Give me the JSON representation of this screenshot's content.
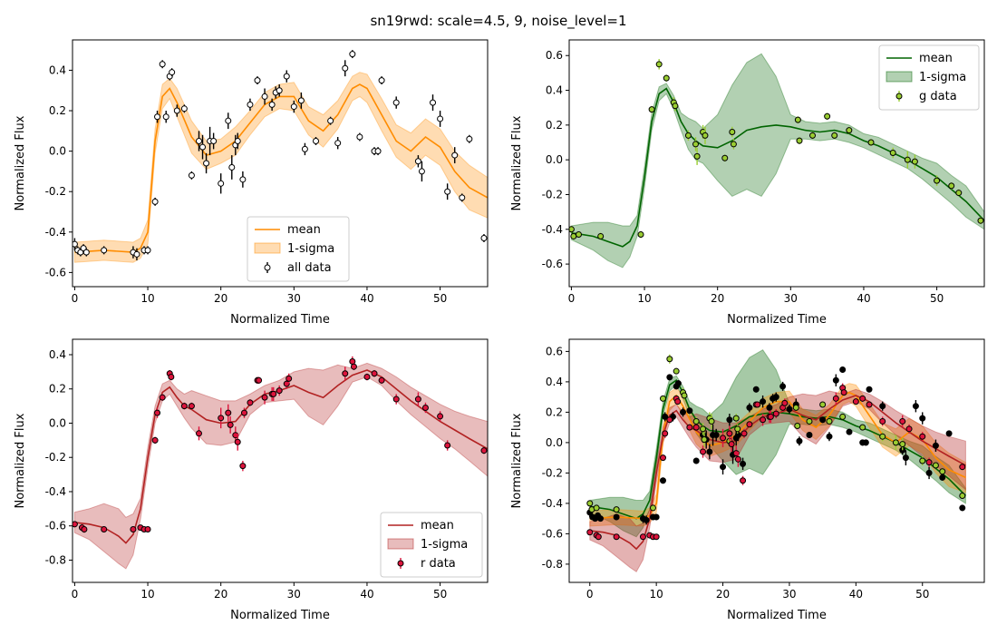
{
  "figure": {
    "title": "sn19rwd: scale=4.5, 9, noise_level=1",
    "colors": {
      "all": "#ff8c00",
      "g": "#006400",
      "r": "#b22222",
      "g_marker": "#9acd32",
      "r_marker": "#dc143c",
      "data_black": "#000000"
    }
  },
  "chart_data": [
    {
      "type": "scatter",
      "panel": "top-left",
      "xlabel": "Normalized Time",
      "ylabel": "Normalized Flux",
      "xlim": [
        -0.3,
        56.5
      ],
      "ylim": [
        -0.67,
        0.55
      ],
      "xticks": [
        0,
        10,
        20,
        30,
        40,
        50
      ],
      "yticks": [
        -0.6,
        -0.4,
        -0.2,
        0.0,
        0.2,
        0.4
      ],
      "legend_position": "lower-center",
      "series": [
        {
          "name": "mean",
          "kind": "line",
          "color": "#ff8c00",
          "x": [
            0,
            4,
            8,
            9,
            10,
            11,
            12,
            13,
            14,
            16,
            18,
            20,
            22,
            24,
            26,
            28,
            30,
            32,
            34,
            36,
            38,
            39,
            40,
            42,
            44,
            46,
            48,
            50,
            52,
            54,
            56.5
          ],
          "y": [
            -0.5,
            -0.49,
            -0.5,
            -0.48,
            -0.4,
            0.05,
            0.27,
            0.31,
            0.24,
            0.07,
            -0.02,
            0.0,
            0.05,
            0.14,
            0.23,
            0.27,
            0.27,
            0.15,
            0.1,
            0.18,
            0.31,
            0.33,
            0.31,
            0.18,
            0.05,
            0.0,
            0.07,
            0.02,
            -0.1,
            -0.18,
            -0.23
          ]
        },
        {
          "name": "1-sigma",
          "kind": "band",
          "color": "#ff8c00",
          "x": [
            0,
            4,
            8,
            9,
            10,
            11,
            12,
            13,
            14,
            16,
            18,
            20,
            22,
            24,
            26,
            28,
            30,
            32,
            34,
            36,
            38,
            39,
            40,
            42,
            44,
            46,
            48,
            50,
            52,
            54,
            56.5
          ],
          "lower": [
            -0.55,
            -0.54,
            -0.55,
            -0.53,
            -0.46,
            -0.01,
            0.21,
            0.26,
            0.17,
            -0.01,
            -0.09,
            -0.06,
            -0.02,
            0.08,
            0.17,
            0.21,
            0.2,
            0.08,
            0.02,
            0.11,
            0.25,
            0.27,
            0.24,
            0.1,
            -0.03,
            -0.09,
            -0.02,
            -0.07,
            -0.2,
            -0.29,
            -0.33
          ],
          "upper": [
            -0.45,
            -0.44,
            -0.45,
            -0.43,
            -0.34,
            0.11,
            0.33,
            0.36,
            0.31,
            0.15,
            0.05,
            0.06,
            0.12,
            0.2,
            0.29,
            0.33,
            0.34,
            0.22,
            0.18,
            0.25,
            0.37,
            0.39,
            0.38,
            0.26,
            0.13,
            0.09,
            0.16,
            0.11,
            0.0,
            -0.07,
            -0.13
          ]
        },
        {
          "name": "all data",
          "kind": "errorbar",
          "marker_face": "#ffffff",
          "marker_edge": "#000000",
          "x": [
            0,
            0.4,
            0.8,
            1.2,
            1.6,
            4,
            8,
            8.5,
            9.5,
            10,
            11,
            11.3,
            12,
            12.5,
            13,
            13.3,
            14,
            15,
            16,
            17,
            17.5,
            18,
            18.5,
            19,
            20,
            21,
            21.5,
            22,
            22.3,
            23,
            24,
            25,
            26,
            27,
            27.5,
            28,
            29,
            30,
            31,
            31.5,
            33,
            35,
            36,
            37,
            38,
            39,
            41,
            41.5,
            42,
            44,
            47,
            47.5,
            49,
            50,
            51,
            52,
            53,
            54,
            56
          ],
          "y": [
            -0.46,
            -0.49,
            -0.5,
            -0.48,
            -0.5,
            -0.49,
            -0.5,
            -0.51,
            -0.49,
            -0.49,
            -0.25,
            0.17,
            0.43,
            0.17,
            0.37,
            0.39,
            0.2,
            0.21,
            -0.12,
            0.05,
            0.02,
            -0.06,
            0.05,
            0.05,
            -0.16,
            0.15,
            -0.08,
            0.03,
            0.05,
            -0.14,
            0.23,
            0.35,
            0.27,
            0.23,
            0.29,
            0.3,
            0.37,
            0.22,
            0.25,
            0.01,
            0.05,
            0.15,
            0.04,
            0.41,
            0.48,
            0.07,
            0.0,
            0.0,
            0.35,
            0.24,
            -0.05,
            -0.1,
            0.24,
            0.16,
            -0.2,
            -0.02,
            -0.23,
            0.06,
            -0.43
          ],
          "yerr": [
            0.03,
            0.02,
            0.02,
            0.02,
            0.02,
            0.02,
            0.03,
            0.03,
            0.02,
            0.02,
            0.02,
            0.03,
            0.02,
            0.03,
            0.02,
            0.02,
            0.03,
            0.02,
            0.02,
            0.05,
            0.06,
            0.05,
            0.07,
            0.04,
            0.05,
            0.04,
            0.06,
            0.05,
            0.04,
            0.04,
            0.03,
            0.02,
            0.04,
            0.03,
            0.03,
            0.03,
            0.03,
            0.03,
            0.04,
            0.03,
            0.02,
            0.02,
            0.03,
            0.04,
            0.02,
            0.02,
            0.02,
            0.02,
            0.02,
            0.03,
            0.03,
            0.05,
            0.04,
            0.04,
            0.04,
            0.04,
            0.02,
            0.02,
            0.02
          ]
        }
      ]
    },
    {
      "type": "scatter",
      "panel": "top-right",
      "xlabel": "Normalized Time",
      "ylabel": "Normalized Flux",
      "xlim": [
        -0.3,
        56.5
      ],
      "ylim": [
        -0.73,
        0.69
      ],
      "xticks": [
        0,
        10,
        20,
        30,
        40,
        50
      ],
      "yticks": [
        -0.6,
        -0.4,
        -0.2,
        0.0,
        0.2,
        0.4,
        0.6
      ],
      "legend_position": "upper-right",
      "series": [
        {
          "name": "mean",
          "kind": "line",
          "color": "#006400",
          "x": [
            0,
            3,
            5,
            7,
            8,
            9,
            10,
            11,
            12,
            13,
            14,
            15,
            16,
            17,
            18,
            20,
            22,
            24,
            26,
            28,
            30,
            32,
            34,
            36,
            38,
            40,
            42,
            44,
            46,
            48,
            50,
            52,
            54,
            56.5
          ],
          "y": [
            -0.42,
            -0.44,
            -0.47,
            -0.5,
            -0.47,
            -0.38,
            -0.1,
            0.22,
            0.38,
            0.41,
            0.33,
            0.22,
            0.15,
            0.11,
            0.08,
            0.07,
            0.11,
            0.17,
            0.19,
            0.2,
            0.19,
            0.17,
            0.16,
            0.17,
            0.15,
            0.11,
            0.08,
            0.04,
            0.0,
            -0.05,
            -0.1,
            -0.17,
            -0.24,
            -0.35
          ]
        },
        {
          "name": "1-sigma",
          "kind": "band",
          "color": "#006400",
          "x": [
            0,
            3,
            5,
            7,
            8,
            9,
            10,
            11,
            12,
            13,
            14,
            15,
            16,
            17,
            18,
            20,
            22,
            24,
            26,
            28,
            30,
            32,
            34,
            36,
            38,
            40,
            42,
            44,
            46,
            48,
            50,
            52,
            54,
            56.5
          ],
          "lower": [
            -0.46,
            -0.52,
            -0.58,
            -0.62,
            -0.56,
            -0.44,
            -0.16,
            0.17,
            0.34,
            0.38,
            0.29,
            0.17,
            0.06,
            0.0,
            -0.02,
            -0.12,
            -0.21,
            -0.17,
            -0.21,
            -0.08,
            0.12,
            0.12,
            0.11,
            0.12,
            0.1,
            0.07,
            0.03,
            -0.01,
            -0.05,
            -0.11,
            -0.18,
            -0.25,
            -0.33,
            -0.4
          ],
          "upper": [
            -0.38,
            -0.36,
            -0.36,
            -0.38,
            -0.38,
            -0.32,
            -0.04,
            0.27,
            0.42,
            0.44,
            0.37,
            0.27,
            0.24,
            0.22,
            0.18,
            0.26,
            0.43,
            0.56,
            0.61,
            0.48,
            0.26,
            0.22,
            0.21,
            0.22,
            0.2,
            0.15,
            0.13,
            0.09,
            0.05,
            0.01,
            -0.02,
            -0.09,
            -0.15,
            -0.3
          ]
        },
        {
          "name": "g data",
          "kind": "errorbar",
          "marker_face": "#9acd32",
          "marker_edge": "#000000",
          "x": [
            0,
            0.3,
            1,
            4,
            9.5,
            11,
            12,
            13,
            14,
            14.2,
            16,
            17,
            17.2,
            18,
            18.3,
            21,
            22,
            22.2,
            31,
            31.2,
            33,
            35,
            36,
            38,
            41,
            44,
            46,
            47,
            50,
            52,
            53,
            56
          ],
          "y": [
            -0.4,
            -0.44,
            -0.43,
            -0.44,
            -0.43,
            0.29,
            0.55,
            0.47,
            0.33,
            0.31,
            0.14,
            0.09,
            0.02,
            0.16,
            0.14,
            0.01,
            0.16,
            0.09,
            0.23,
            0.11,
            0.14,
            0.25,
            0.14,
            0.17,
            0.1,
            0.04,
            0.0,
            -0.01,
            -0.12,
            -0.15,
            -0.19,
            -0.35
          ],
          "yerr": [
            0.02,
            0.02,
            0.01,
            0.02,
            0.02,
            0.02,
            0.03,
            0.02,
            0.03,
            0.03,
            0.03,
            0.04,
            0.05,
            0.04,
            0.05,
            0.02,
            0.03,
            0.03,
            0.02,
            0.02,
            0.02,
            0.02,
            0.02,
            0.02,
            0.02,
            0.03,
            0.05,
            0.04,
            0.03,
            0.02,
            0.02,
            0.02
          ]
        }
      ]
    },
    {
      "type": "scatter",
      "panel": "bottom-left",
      "xlabel": "Normalized Time",
      "ylabel": "Normalized Flux",
      "xlim": [
        -0.3,
        56.5
      ],
      "ylim": [
        -0.93,
        0.49
      ],
      "xticks": [
        0,
        10,
        20,
        30,
        40,
        50
      ],
      "yticks": [
        -0.8,
        -0.6,
        -0.4,
        -0.2,
        0.0,
        0.2,
        0.4
      ],
      "legend_position": "lower-right",
      "series": [
        {
          "name": "mean",
          "kind": "line",
          "color": "#b22222",
          "x": [
            0,
            2,
            4,
            6,
            7,
            8,
            9,
            10,
            11,
            12,
            13,
            14,
            15,
            16,
            18,
            20,
            22,
            24,
            26,
            28,
            30,
            32,
            34,
            36,
            38,
            40,
            42,
            44,
            46,
            48,
            50,
            52,
            54,
            56.5
          ],
          "y": [
            -0.58,
            -0.59,
            -0.61,
            -0.66,
            -0.7,
            -0.65,
            -0.5,
            -0.2,
            0.05,
            0.18,
            0.21,
            0.15,
            0.1,
            0.08,
            0.02,
            0.0,
            0.01,
            0.11,
            0.17,
            0.19,
            0.22,
            0.18,
            0.15,
            0.22,
            0.28,
            0.31,
            0.27,
            0.2,
            0.13,
            0.07,
            0.01,
            -0.04,
            -0.09,
            -0.15
          ]
        },
        {
          "name": "1-sigma",
          "kind": "band",
          "color": "#b22222",
          "x": [
            0,
            2,
            4,
            6,
            7,
            8,
            9,
            10,
            11,
            12,
            13,
            14,
            15,
            16,
            18,
            20,
            22,
            24,
            26,
            28,
            30,
            32,
            34,
            36,
            38,
            40,
            42,
            44,
            46,
            48,
            50,
            52,
            54,
            56.5
          ],
          "lower": [
            -0.64,
            -0.68,
            -0.75,
            -0.82,
            -0.85,
            -0.77,
            -0.56,
            -0.26,
            0.0,
            0.13,
            0.17,
            0.1,
            0.03,
            -0.03,
            -0.12,
            -0.13,
            -0.11,
            0.05,
            0.12,
            0.13,
            0.14,
            0.04,
            -0.01,
            0.1,
            0.24,
            0.27,
            0.22,
            0.13,
            0.05,
            -0.02,
            -0.09,
            -0.15,
            -0.22,
            -0.31
          ]
        },
        {
          "name": "r data",
          "kind": "errorbar",
          "marker_face": "#dc143c",
          "marker_edge": "#000000",
          "x": [
            0,
            1,
            1.3,
            4,
            8,
            9,
            9.5,
            10,
            11,
            11.3,
            12,
            13,
            13.2,
            15,
            16,
            17,
            20,
            21,
            21.3,
            22,
            22.3,
            23,
            23.2,
            24,
            25,
            25.2,
            26,
            27,
            27.2,
            28,
            29,
            29.3,
            37,
            38,
            38.2,
            40,
            41,
            42,
            44,
            47,
            48,
            50,
            51,
            56
          ],
          "y": [
            -0.59,
            -0.61,
            -0.62,
            -0.62,
            -0.62,
            -0.61,
            -0.62,
            -0.62,
            -0.1,
            0.06,
            0.15,
            0.29,
            0.27,
            0.1,
            0.1,
            -0.06,
            0.03,
            0.06,
            -0.01,
            -0.07,
            -0.11,
            -0.25,
            0.06,
            0.12,
            0.25,
            0.25,
            0.15,
            0.17,
            0.17,
            0.19,
            0.23,
            0.26,
            0.29,
            0.36,
            0.33,
            0.27,
            0.29,
            0.25,
            0.14,
            0.14,
            0.09,
            0.04,
            -0.13,
            -0.16
          ],
          "yerr": [
            0.01,
            0.02,
            0.02,
            0.01,
            0.01,
            0.01,
            0.01,
            0.01,
            0.02,
            0.03,
            0.02,
            0.02,
            0.02,
            0.02,
            0.02,
            0.04,
            0.06,
            0.05,
            0.05,
            0.05,
            0.05,
            0.03,
            0.03,
            0.02,
            0.02,
            0.02,
            0.04,
            0.04,
            0.04,
            0.03,
            0.03,
            0.03,
            0.04,
            0.03,
            0.02,
            0.02,
            0.02,
            0.02,
            0.03,
            0.04,
            0.03,
            0.03,
            0.03,
            0.02
          ]
        }
      ]
    },
    {
      "type": "scatter",
      "panel": "bottom-right",
      "xlabel": "Normalized Time",
      "ylabel": "Normalized Flux",
      "xlim": [
        -3.1,
        59.3
      ],
      "ylim": [
        -0.92,
        0.68
      ],
      "xticks": [
        0,
        10,
        20,
        30,
        40,
        50
      ],
      "yticks": [
        -0.8,
        -0.6,
        -0.4,
        -0.2,
        0.0,
        0.2,
        0.4,
        0.6
      ],
      "legend_position": "none"
    }
  ]
}
